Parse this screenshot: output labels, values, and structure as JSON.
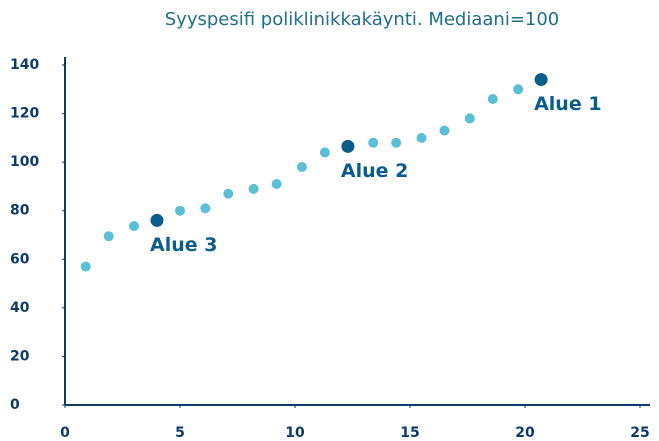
{
  "chart_data": {
    "type": "scatter",
    "title": "Syyspesifi poliklinikkakäynti. Mediaani=100",
    "series": [
      {
        "color": "#5bc0d5",
        "x": [
          0.9,
          1.9,
          3.0,
          5.0,
          6.1,
          7.1,
          8.2,
          9.2,
          10.3,
          11.3,
          13.4,
          14.4,
          15.5,
          16.5,
          17.6,
          18.6,
          19.7
        ],
        "values": [
          57,
          69.5,
          73.7,
          80,
          81,
          87,
          89,
          91,
          98,
          104,
          108,
          108,
          110,
          113,
          118,
          126,
          130
        ]
      },
      {
        "color": "#0a5c8a",
        "x": [
          4.0,
          12.3,
          20.7
        ],
        "values": [
          76,
          106.5,
          134
        ],
        "labels": [
          "Alue 3",
          "Alue 2",
          "Alue 1"
        ]
      }
    ],
    "xlim": [
      0,
      25
    ],
    "xticks": [
      0,
      5,
      10,
      15,
      20,
      25
    ],
    "ylim": [
      0,
      140
    ],
    "yticks": [
      0,
      20,
      40,
      60,
      80,
      100,
      120,
      140
    ],
    "grid": false
  }
}
